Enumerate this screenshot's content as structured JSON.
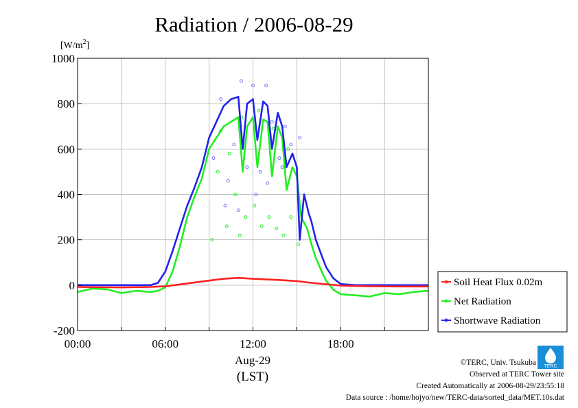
{
  "chart_data": {
    "type": "line",
    "title": "Radiation / 2006-08-29",
    "ylabel": "[W/m",
    "ylabel_sup": "2",
    "ylabel_close": "]",
    "xlabel_date": "Aug-29",
    "xlabel_unit": "(LST)",
    "ylim": [
      -200,
      1000
    ],
    "xlim": [
      0,
      24
    ],
    "yticks": [
      -200,
      0,
      200,
      400,
      600,
      800,
      1000
    ],
    "xticks": [
      {
        "value": 0,
        "label": "00:00"
      },
      {
        "value": 6,
        "label": "06:00"
      },
      {
        "value": 12,
        "label": "12:00"
      },
      {
        "value": 18,
        "label": "18:00"
      }
    ],
    "grid": true,
    "legend_position": "right-bottom-outside",
    "series": [
      {
        "name": "Soil Heat Flux 0.02m",
        "color": "#ff2020",
        "points": [
          [
            0,
            -8
          ],
          [
            3,
            -10
          ],
          [
            5,
            -8
          ],
          [
            6,
            -5
          ],
          [
            7,
            3
          ],
          [
            8,
            12
          ],
          [
            9,
            20
          ],
          [
            10,
            28
          ],
          [
            11,
            32
          ],
          [
            12,
            28
          ],
          [
            13,
            25
          ],
          [
            14,
            22
          ],
          [
            15,
            18
          ],
          [
            16,
            10
          ],
          [
            17,
            4
          ],
          [
            18,
            -2
          ],
          [
            20,
            -5
          ],
          [
            22,
            -6
          ],
          [
            24,
            -6
          ]
        ]
      },
      {
        "name": "Net Radiation",
        "color": "#22ee22",
        "points": [
          [
            0,
            -30
          ],
          [
            1,
            -15
          ],
          [
            2,
            -18
          ],
          [
            3,
            -35
          ],
          [
            4,
            -25
          ],
          [
            5,
            -30
          ],
          [
            5.5,
            -25
          ],
          [
            6,
            -10
          ],
          [
            6.5,
            60
          ],
          [
            7,
            170
          ],
          [
            7.5,
            300
          ],
          [
            8,
            390
          ],
          [
            8.5,
            470
          ],
          [
            9,
            600
          ],
          [
            9.5,
            650
          ],
          [
            10,
            700
          ],
          [
            10.5,
            720
          ],
          [
            11,
            740
          ],
          [
            11.3,
            500
          ],
          [
            11.6,
            700
          ],
          [
            12,
            740
          ],
          [
            12.3,
            520
          ],
          [
            12.7,
            730
          ],
          [
            13,
            720
          ],
          [
            13.3,
            480
          ],
          [
            13.7,
            700
          ],
          [
            14,
            650
          ],
          [
            14.3,
            420
          ],
          [
            14.7,
            520
          ],
          [
            15,
            480
          ],
          [
            15.3,
            300
          ],
          [
            15.7,
            250
          ],
          [
            16,
            180
          ],
          [
            16.3,
            120
          ],
          [
            16.7,
            60
          ],
          [
            17,
            20
          ],
          [
            17.5,
            -20
          ],
          [
            18,
            -40
          ],
          [
            19,
            -45
          ],
          [
            20,
            -50
          ],
          [
            21,
            -35
          ],
          [
            22,
            -40
          ],
          [
            23,
            -30
          ],
          [
            24,
            -25
          ]
        ]
      },
      {
        "name": "Shortwave Radiation",
        "color": "#2222ee",
        "points": [
          [
            0,
            0
          ],
          [
            5,
            0
          ],
          [
            5.5,
            10
          ],
          [
            6,
            60
          ],
          [
            6.5,
            150
          ],
          [
            7,
            250
          ],
          [
            7.5,
            350
          ],
          [
            8,
            430
          ],
          [
            8.5,
            520
          ],
          [
            9,
            650
          ],
          [
            9.5,
            720
          ],
          [
            10,
            790
          ],
          [
            10.5,
            820
          ],
          [
            11,
            830
          ],
          [
            11.3,
            600
          ],
          [
            11.6,
            800
          ],
          [
            12,
            820
          ],
          [
            12.3,
            640
          ],
          [
            12.7,
            810
          ],
          [
            13,
            790
          ],
          [
            13.3,
            600
          ],
          [
            13.7,
            760
          ],
          [
            14,
            700
          ],
          [
            14.3,
            520
          ],
          [
            14.7,
            580
          ],
          [
            15,
            520
          ],
          [
            15.2,
            200
          ],
          [
            15.5,
            400
          ],
          [
            15.8,
            320
          ],
          [
            16,
            280
          ],
          [
            16.3,
            200
          ],
          [
            16.7,
            130
          ],
          [
            17,
            80
          ],
          [
            17.5,
            30
          ],
          [
            18,
            5
          ],
          [
            19,
            0
          ],
          [
            24,
            0
          ]
        ]
      }
    ],
    "scatter_series": [
      {
        "name": "Net Radiation",
        "color": "#22ee22",
        "points": [
          [
            9.2,
            200
          ],
          [
            9.6,
            500
          ],
          [
            10.2,
            260
          ],
          [
            10.8,
            400
          ],
          [
            11.1,
            220
          ],
          [
            11.5,
            300
          ],
          [
            12.1,
            350
          ],
          [
            12.6,
            260
          ],
          [
            13.1,
            300
          ],
          [
            13.6,
            250
          ],
          [
            14.1,
            220
          ],
          [
            14.6,
            300
          ],
          [
            15.1,
            180
          ],
          [
            9.8,
            680
          ],
          [
            10.4,
            580
          ],
          [
            11.2,
            740
          ],
          [
            12.4,
            770
          ],
          [
            13.4,
            690
          ],
          [
            14.4,
            600
          ]
        ]
      },
      {
        "name": "Shortwave Radiation",
        "color": "#7777ff",
        "points": [
          [
            9.3,
            560
          ],
          [
            9.8,
            820
          ],
          [
            10.3,
            460
          ],
          [
            10.7,
            620
          ],
          [
            11.2,
            900
          ],
          [
            11.6,
            520
          ],
          [
            12.0,
            880
          ],
          [
            12.5,
            500
          ],
          [
            12.9,
            880
          ],
          [
            13.3,
            720
          ],
          [
            13.8,
            560
          ],
          [
            14.2,
            700
          ],
          [
            14.6,
            620
          ],
          [
            15.2,
            650
          ],
          [
            14.0,
            520
          ],
          [
            10.1,
            350
          ],
          [
            11.0,
            330
          ],
          [
            12.2,
            400
          ],
          [
            13.0,
            450
          ]
        ]
      }
    ]
  },
  "footer": {
    "copyright": "©TERC, Univ. Tsukuba",
    "site": "Observed at TERC Tower site",
    "created": "Created Automatically at 2006-08-29/23:55:18",
    "source": "Data source : /home/hojyo/new/TERC-data/sorted_data/MET.10s.dat",
    "logo_text": "TERC"
  }
}
